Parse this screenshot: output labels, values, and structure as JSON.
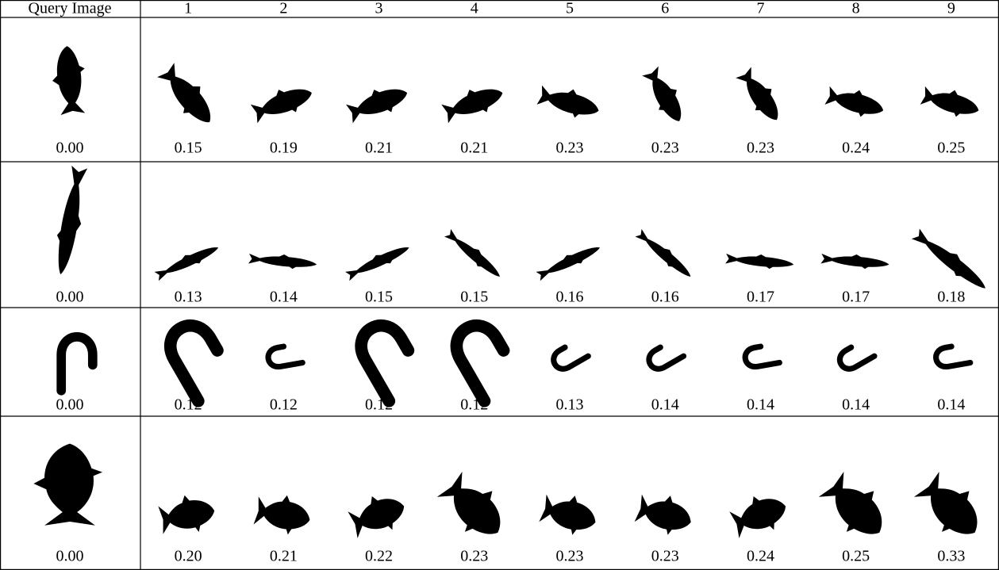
{
  "header": [
    "Query Image",
    "1",
    "2",
    "3",
    "4",
    "5",
    "6",
    "7",
    "8",
    "9"
  ],
  "rows": [
    [
      "0.00",
      "0.15",
      "0.19",
      "0.21",
      "0.21",
      "0.23",
      "0.23",
      "0.23",
      "0.24",
      "0.25"
    ],
    [
      "0.00",
      "0.13",
      "0.14",
      "0.15",
      "0.15",
      "0.16",
      "0.16",
      "0.17",
      "0.17",
      "0.18"
    ],
    [
      "0.00",
      "0.12",
      "0.12",
      "0.12",
      "0.12",
      "0.13",
      "0.14",
      "0.14",
      "0.14",
      "0.14"
    ],
    [
      "0.00",
      "0.20",
      "0.21",
      "0.22",
      "0.23",
      "0.23",
      "0.23",
      "0.24",
      "0.25",
      "0.33"
    ]
  ]
}
